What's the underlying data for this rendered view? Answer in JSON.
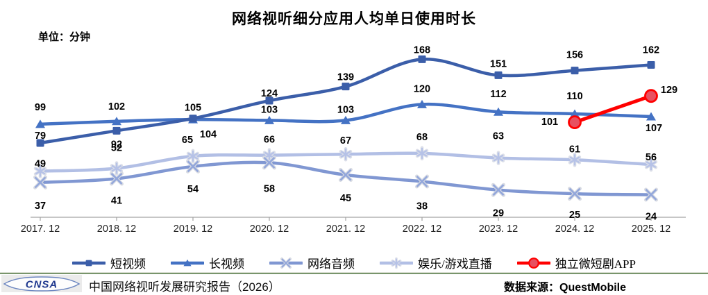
{
  "title": "网络视听细分应用人均单日使用时长",
  "unit_label": "单位：分钟",
  "footer": {
    "logo_text": "CNSA",
    "report_text": "中国网络视听发展研究报告（2026）",
    "source_text": "数据来源：QuestMobile"
  },
  "chart_data": {
    "type": "line",
    "title": "网络视听细分应用人均单日使用时长",
    "unit": "分钟",
    "x": [
      "2017. 12",
      "2018. 12",
      "2019. 12",
      "2020. 12",
      "2021. 12",
      "2022. 12",
      "2023. 12",
      "2024. 12",
      "2025. 12"
    ],
    "ylim": [
      0,
      200
    ],
    "grid": false,
    "legend_position": "bottom",
    "axis_color": "#A3A3A3",
    "smoothed_lines": true,
    "series": [
      {
        "key": "short-video",
        "name": "短视频",
        "color": "#3B5EA9",
        "marker": "square",
        "line_width": 4.5,
        "z": 3,
        "values": [
          79,
          92,
          105,
          124,
          139,
          168,
          151,
          156,
          162
        ],
        "label_dx": [
          0,
          0,
          0,
          0,
          0,
          0,
          0,
          0,
          0
        ],
        "label_dy": [
          -6,
          24,
          -11,
          -6,
          -9,
          -9,
          -12,
          -18,
          -17
        ]
      },
      {
        "key": "long-video",
        "name": "长视频",
        "color": "#4472C4",
        "marker": "triangle",
        "line_width": 4.5,
        "z": 2,
        "values": [
          99,
          102,
          104,
          103,
          103,
          120,
          112,
          110,
          107
        ],
        "label_dx": [
          0,
          0,
          22,
          0,
          0,
          0,
          0,
          0,
          4
        ],
        "label_dy": [
          -20,
          -17,
          26,
          -11,
          -11,
          -18,
          -21,
          -21,
          21
        ]
      },
      {
        "key": "online-audio",
        "name": "网络音频",
        "color": "#8097D2",
        "marker": "x",
        "marker_color": "#93A7DB",
        "line_width": 4.5,
        "z": 1,
        "values": [
          37,
          41,
          54,
          58,
          45,
          38,
          29,
          25,
          24
        ],
        "label_dx": [
          0,
          0,
          0,
          0,
          0,
          0,
          0,
          0,
          0
        ],
        "label_dy": [
          38,
          36,
          37,
          42,
          38,
          40,
          38,
          35,
          36
        ]
      },
      {
        "key": "entertainment-game-live",
        "name": "娱乐/游戏直播",
        "color": "#B2BFE5",
        "marker": "asterisk",
        "marker_color": "#B6C2E7",
        "line_width": 4.5,
        "z": 0,
        "values": [
          49,
          52,
          65,
          66,
          67,
          68,
          63,
          61,
          56
        ],
        "label_dx": [
          0,
          0,
          -8,
          0,
          0,
          0,
          0,
          0,
          0
        ],
        "label_dy": [
          -6,
          -25,
          -19,
          -18,
          -15,
          -19,
          -27,
          -11,
          -6
        ]
      },
      {
        "key": "micro-drama-app",
        "name": "独立微短剧APP",
        "color": "#FF0000",
        "marker": "circle",
        "marker_fill": "#E85060",
        "line_width": 5,
        "z": 4,
        "values": [
          null,
          null,
          null,
          null,
          null,
          null,
          null,
          101,
          129
        ],
        "label_dx": [
          0,
          0,
          0,
          0,
          0,
          0,
          0,
          -36,
          26
        ],
        "label_dy": [
          0,
          0,
          0,
          0,
          0,
          0,
          0,
          4,
          -4
        ]
      }
    ]
  }
}
